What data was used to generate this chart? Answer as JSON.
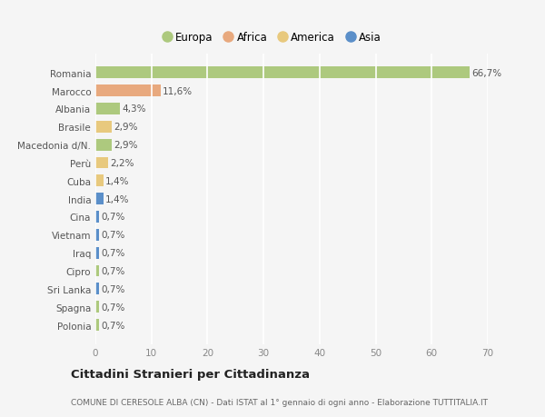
{
  "categories": [
    "Romania",
    "Marocco",
    "Albania",
    "Brasile",
    "Macedonia d/N.",
    "Perù",
    "Cuba",
    "India",
    "Cina",
    "Vietnam",
    "Iraq",
    "Cipro",
    "Sri Lanka",
    "Spagna",
    "Polonia"
  ],
  "values": [
    66.7,
    11.6,
    4.3,
    2.9,
    2.9,
    2.2,
    1.4,
    1.4,
    0.7,
    0.7,
    0.7,
    0.7,
    0.7,
    0.7,
    0.7
  ],
  "labels": [
    "66,7%",
    "11,6%",
    "4,3%",
    "2,9%",
    "2,9%",
    "2,2%",
    "1,4%",
    "1,4%",
    "0,7%",
    "0,7%",
    "0,7%",
    "0,7%",
    "0,7%",
    "0,7%",
    "0,7%"
  ],
  "colors": [
    "#adc97e",
    "#e8a97e",
    "#adc97e",
    "#e8c97e",
    "#adc97e",
    "#e8c97e",
    "#e8c97e",
    "#5b8fc9",
    "#5b8fc9",
    "#5b8fc9",
    "#5b8fc9",
    "#adc97e",
    "#5b8fc9",
    "#adc97e",
    "#adc97e"
  ],
  "legend_labels": [
    "Europa",
    "Africa",
    "America",
    "Asia"
  ],
  "legend_colors": [
    "#adc97e",
    "#e8a97e",
    "#e8c97e",
    "#5b8fc9"
  ],
  "title": "Cittadini Stranieri per Cittadinanza",
  "subtitle": "COMUNE DI CERESOLE ALBA (CN) - Dati ISTAT al 1° gennaio di ogni anno - Elaborazione TUTTITALIA.IT",
  "xlim": [
    0,
    70
  ],
  "xticks": [
    0,
    10,
    20,
    30,
    40,
    50,
    60,
    70
  ],
  "background_color": "#f5f5f5",
  "grid_color": "#ffffff",
  "bar_height": 0.65
}
